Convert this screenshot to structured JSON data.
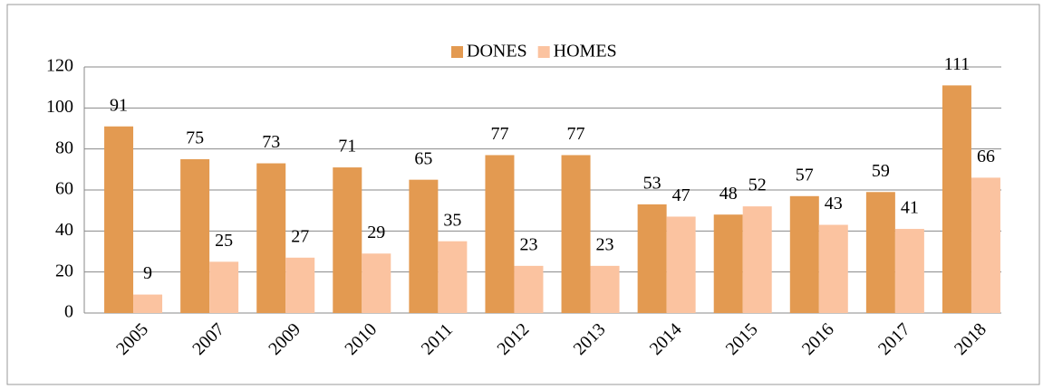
{
  "chart_data": {
    "type": "bar",
    "categories": [
      "2005",
      "2007",
      "2009",
      "2010",
      "2011",
      "2012",
      "2013",
      "2014",
      "2015",
      "2016",
      "2017",
      "2018"
    ],
    "series": [
      {
        "name": "DONES",
        "color": "#e39a51",
        "values": [
          91,
          75,
          73,
          71,
          65,
          77,
          77,
          53,
          48,
          57,
          59,
          111
        ]
      },
      {
        "name": "HOMES",
        "color": "#fbc3a0",
        "values": [
          9,
          25,
          27,
          29,
          35,
          23,
          23,
          47,
          52,
          43,
          41,
          66
        ]
      }
    ],
    "ylim": [
      0,
      120
    ],
    "yticks": [
      0,
      20,
      40,
      60,
      80,
      100,
      120
    ],
    "grid": true,
    "legend": "top"
  }
}
